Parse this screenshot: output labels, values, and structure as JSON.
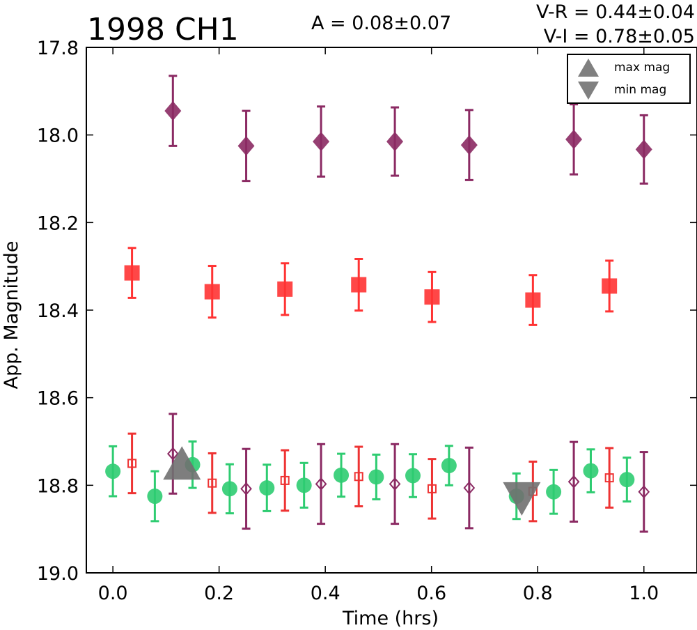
{
  "chart_data": {
    "type": "scatter",
    "title": "1998 CH1",
    "amplitude_text": "A  = 0.08±0.07",
    "color_index_text": [
      "V-R = 0.44±0.04",
      "V-I  = 0.78±0.05"
    ],
    "xlabel": "Time (hrs)",
    "ylabel": "App. Magnitude",
    "xlim": [
      -0.05,
      1.1
    ],
    "ylim": [
      19.0,
      17.8
    ],
    "y_inverted": true,
    "xticks": [
      "0.0",
      "0.2",
      "0.4",
      "0.6",
      "0.8",
      "1.0"
    ],
    "yticks": [
      "17.8",
      "18.0",
      "18.2",
      "18.4",
      "18.6",
      "18.8",
      "19.0"
    ],
    "legend_placement": "top-right",
    "legend": [
      {
        "label": "max mag",
        "marker": "triangle-up",
        "color": "#808080"
      },
      {
        "label": "min mag",
        "marker": "triangle-down",
        "color": "#808080"
      }
    ],
    "extrema": [
      {
        "kind": "max",
        "x": 0.13,
        "y": 18.76
      },
      {
        "kind": "min",
        "x": 0.77,
        "y": 18.82
      }
    ],
    "series": [
      {
        "marker": "diamond",
        "filled": true,
        "color": "#8b2a63",
        "points": [
          {
            "x": 0.113,
            "y": 17.945,
            "err": 0.08
          },
          {
            "x": 0.251,
            "y": 18.025,
            "err": 0.08
          },
          {
            "x": 0.392,
            "y": 18.015,
            "err": 0.08
          },
          {
            "x": 0.531,
            "y": 18.015,
            "err": 0.078
          },
          {
            "x": 0.671,
            "y": 18.023,
            "err": 0.08
          },
          {
            "x": 0.868,
            "y": 18.01,
            "err": 0.08
          },
          {
            "x": 1.0,
            "y": 18.033,
            "err": 0.078
          }
        ]
      },
      {
        "marker": "square",
        "filled": true,
        "color": "#ff3333",
        "points": [
          {
            "x": 0.036,
            "y": 18.315,
            "err": 0.057
          },
          {
            "x": 0.187,
            "y": 18.358,
            "err": 0.059
          },
          {
            "x": 0.324,
            "y": 18.352,
            "err": 0.059
          },
          {
            "x": 0.463,
            "y": 18.342,
            "err": 0.059
          },
          {
            "x": 0.601,
            "y": 18.37,
            "err": 0.057
          },
          {
            "x": 0.791,
            "y": 18.377,
            "err": 0.057
          },
          {
            "x": 0.935,
            "y": 18.345,
            "err": 0.058
          }
        ]
      },
      {
        "marker": "circle",
        "filled": true,
        "color": "#2ecc71",
        "points": [
          {
            "x": 0.0,
            "y": 18.768,
            "err": 0.057
          },
          {
            "x": 0.079,
            "y": 18.825,
            "err": 0.057
          },
          {
            "x": 0.15,
            "y": 18.753,
            "err": 0.053
          },
          {
            "x": 0.22,
            "y": 18.808,
            "err": 0.056
          },
          {
            "x": 0.29,
            "y": 18.806,
            "err": 0.053
          },
          {
            "x": 0.36,
            "y": 18.8,
            "err": 0.051
          },
          {
            "x": 0.43,
            "y": 18.777,
            "err": 0.049
          },
          {
            "x": 0.496,
            "y": 18.781,
            "err": 0.051
          },
          {
            "x": 0.565,
            "y": 18.778,
            "err": 0.049
          },
          {
            "x": 0.633,
            "y": 18.755,
            "err": 0.045
          },
          {
            "x": 0.76,
            "y": 18.825,
            "err": 0.052
          },
          {
            "x": 0.83,
            "y": 18.815,
            "err": 0.05
          },
          {
            "x": 0.9,
            "y": 18.767,
            "err": 0.049
          },
          {
            "x": 0.968,
            "y": 18.787,
            "err": 0.05
          }
        ]
      },
      {
        "marker": "square",
        "filled": false,
        "color": "#ee3333",
        "points": [
          {
            "x": 0.036,
            "y": 18.75,
            "err": 0.068
          },
          {
            "x": 0.187,
            "y": 18.795,
            "err": 0.068
          },
          {
            "x": 0.324,
            "y": 18.789,
            "err": 0.069
          },
          {
            "x": 0.463,
            "y": 18.78,
            "err": 0.068
          },
          {
            "x": 0.601,
            "y": 18.808,
            "err": 0.068
          },
          {
            "x": 0.791,
            "y": 18.814,
            "err": 0.068
          },
          {
            "x": 0.935,
            "y": 18.783,
            "err": 0.068
          }
        ]
      },
      {
        "marker": "diamond",
        "filled": false,
        "color": "#8b2a63",
        "points": [
          {
            "x": 0.113,
            "y": 18.728,
            "err": 0.091
          },
          {
            "x": 0.251,
            "y": 18.808,
            "err": 0.091
          },
          {
            "x": 0.392,
            "y": 18.797,
            "err": 0.091
          },
          {
            "x": 0.531,
            "y": 18.797,
            "err": 0.091
          },
          {
            "x": 0.671,
            "y": 18.806,
            "err": 0.092
          },
          {
            "x": 0.868,
            "y": 18.792,
            "err": 0.091
          },
          {
            "x": 1.0,
            "y": 18.815,
            "err": 0.091
          }
        ]
      }
    ]
  }
}
